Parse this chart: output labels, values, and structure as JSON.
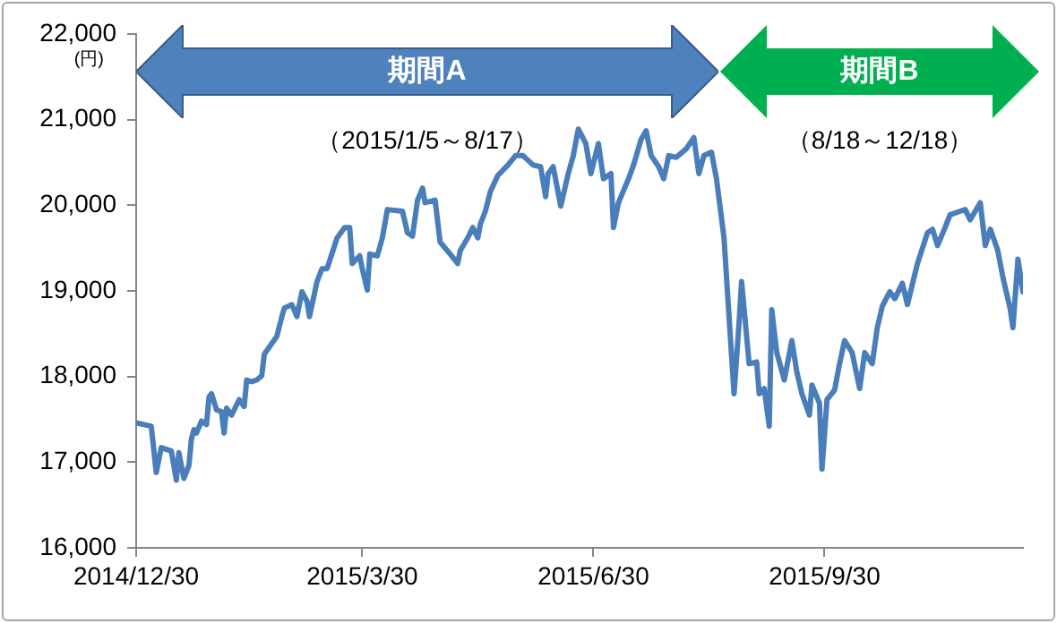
{
  "chart_data": {
    "type": "line",
    "ylabel": "(円)",
    "x": [
      "2014-12-30",
      "2015-01-05",
      "2015-01-07",
      "2015-01-09",
      "2015-01-13",
      "2015-01-15",
      "2015-01-16",
      "2015-01-18",
      "2015-01-20",
      "2015-01-21",
      "2015-01-22",
      "2015-01-23",
      "2015-01-25",
      "2015-01-27",
      "2015-01-28",
      "2015-01-29",
      "2015-01-31",
      "2015-02-02",
      "2015-02-03",
      "2015-02-04",
      "2015-02-06",
      "2015-02-09",
      "2015-02-11",
      "2015-02-12",
      "2015-02-14",
      "2015-02-16",
      "2015-02-18",
      "2015-02-19",
      "2015-02-24",
      "2015-02-26",
      "2015-02-27",
      "2015-03-02",
      "2015-03-04",
      "2015-03-06",
      "2015-03-08",
      "2015-03-09",
      "2015-03-12",
      "2015-03-14",
      "2015-03-16",
      "2015-03-19",
      "2015-03-20",
      "2015-03-23",
      "2015-03-25",
      "2015-03-26",
      "2015-03-29",
      "2015-03-30",
      "2015-04-01",
      "2015-04-02",
      "2015-04-05",
      "2015-04-07",
      "2015-04-09",
      "2015-04-15",
      "2015-04-17",
      "2015-04-19",
      "2015-04-21",
      "2015-04-23",
      "2015-04-24",
      "2015-04-28",
      "2015-04-30",
      "2015-05-04",
      "2015-05-07",
      "2015-05-08",
      "2015-05-11",
      "2015-05-13",
      "2015-05-15",
      "2015-05-16",
      "2015-05-18",
      "2015-05-20",
      "2015-05-23",
      "2015-05-27",
      "2015-05-30",
      "2015-06-02",
      "2015-06-06",
      "2015-06-09",
      "2015-06-11",
      "2015-06-12",
      "2015-06-14",
      "2015-06-17",
      "2015-06-20",
      "2015-06-22",
      "2015-06-24",
      "2015-06-27",
      "2015-06-29",
      "2015-07-02",
      "2015-07-04",
      "2015-07-07",
      "2015-07-08",
      "2015-07-10",
      "2015-07-14",
      "2015-07-16",
      "2015-07-19",
      "2015-07-21",
      "2015-07-23",
      "2015-07-26",
      "2015-07-28",
      "2015-07-30",
      "2015-08-02",
      "2015-08-06",
      "2015-08-09",
      "2015-08-11",
      "2015-08-13",
      "2015-08-16",
      "2015-08-18",
      "2015-08-21",
      "2015-08-23",
      "2015-08-25",
      "2015-08-27",
      "2015-08-28",
      "2015-08-31",
      "2015-09-03",
      "2015-09-04",
      "2015-09-06",
      "2015-09-08",
      "2015-09-09",
      "2015-09-11",
      "2015-09-14",
      "2015-09-17",
      "2015-09-19",
      "2015-09-21",
      "2015-09-24",
      "2015-09-25",
      "2015-09-28",
      "2015-09-29",
      "2015-10-01",
      "2015-10-04",
      "2015-10-06",
      "2015-10-08",
      "2015-10-11",
      "2015-10-14",
      "2015-10-16",
      "2015-10-19",
      "2015-10-21",
      "2015-10-23",
      "2015-10-26",
      "2015-10-28",
      "2015-10-31",
      "2015-11-02",
      "2015-11-06",
      "2015-11-10",
      "2015-11-12",
      "2015-11-14",
      "2015-11-17",
      "2015-11-19",
      "2015-11-23",
      "2015-11-25",
      "2015-11-27",
      "2015-12-01",
      "2015-12-03",
      "2015-12-05",
      "2015-12-08",
      "2015-12-10",
      "2015-12-13",
      "2015-12-14",
      "2015-12-16",
      "2015-12-18"
    ],
    "series": [
      {
        "color": "#4a7ebb",
        "values": [
          17460,
          17420,
          16880,
          17170,
          17130,
          16790,
          17110,
          16810,
          16960,
          17270,
          17380,
          17340,
          17480,
          17440,
          17760,
          17800,
          17610,
          17590,
          17340,
          17630,
          17550,
          17730,
          17650,
          17960,
          17940,
          17960,
          18010,
          18260,
          18470,
          18700,
          18800,
          18840,
          18700,
          18990,
          18880,
          18700,
          19110,
          19260,
          19260,
          19530,
          19620,
          19740,
          19740,
          19320,
          19410,
          19260,
          19010,
          19430,
          19410,
          19620,
          19950,
          19930,
          19680,
          19640,
          20060,
          20200,
          20030,
          20060,
          19570,
          19430,
          19320,
          19470,
          19620,
          19740,
          19620,
          19780,
          19930,
          20160,
          20350,
          20470,
          20580,
          20580,
          20470,
          20450,
          20100,
          20370,
          20450,
          19990,
          20370,
          20580,
          20890,
          20720,
          20370,
          20720,
          20310,
          20370,
          19740,
          20030,
          20310,
          20470,
          20770,
          20870,
          20580,
          20450,
          20310,
          20580,
          20560,
          20660,
          20790,
          20370,
          20580,
          20620,
          20310,
          19620,
          18700,
          17800,
          18630,
          19110,
          18150,
          18170,
          17800,
          17860,
          17420,
          18780,
          18280,
          17960,
          18420,
          18050,
          17800,
          17550,
          17900,
          17690,
          16920,
          17730,
          17840,
          18150,
          18420,
          18280,
          17860,
          18280,
          18150,
          18570,
          18820,
          18990,
          18910,
          19090,
          18840,
          19320,
          19680,
          19720,
          19530,
          19740,
          19890,
          19930,
          19950,
          19830,
          20030,
          19530,
          19720,
          19470,
          19160,
          18780,
          18570,
          19370,
          18990
        ]
      }
    ],
    "xlim": [
      "2014-12-30",
      "2015-12-18"
    ],
    "xticks": [
      {
        "value": "2014-12-30",
        "label": "2014/12/30"
      },
      {
        "value": "2015-03-30",
        "label": "2015/3/30"
      },
      {
        "value": "2015-06-30",
        "label": "2015/6/30"
      },
      {
        "value": "2015-09-30",
        "label": "2015/9/30"
      }
    ],
    "ylim": [
      16000,
      22000
    ],
    "yticks": [
      {
        "value": 16000,
        "label": "16,000"
      },
      {
        "value": 17000,
        "label": "17,000"
      },
      {
        "value": 18000,
        "label": "18,000"
      },
      {
        "value": 19000,
        "label": "19,000"
      },
      {
        "value": 20000,
        "label": "20,000"
      },
      {
        "value": 21000,
        "label": "21,000"
      },
      {
        "value": 22000,
        "label": "22,000"
      }
    ],
    "annotations": [
      "期間A",
      "（2015/1/5～8/17）",
      "期間B",
      "（8/18～12/18）"
    ],
    "grid": false,
    "legend": false,
    "marker": "none",
    "line_style": "solid"
  }
}
